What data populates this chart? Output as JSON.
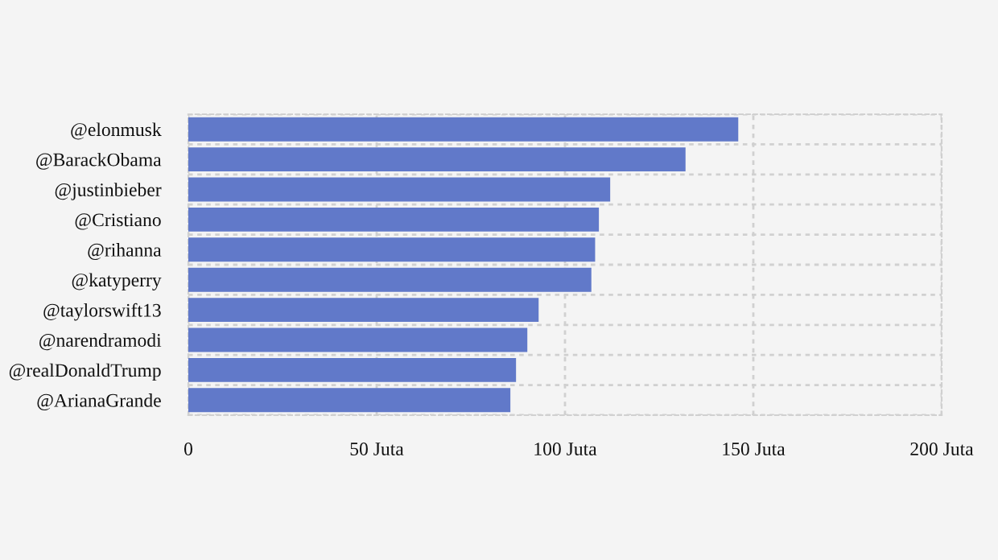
{
  "chart_data": {
    "type": "bar",
    "orientation": "horizontal",
    "categories": [
      "@elonmusk",
      "@BarackObama",
      "@justinbieber",
      "@Cristiano",
      "@rihanna",
      "@katyperry",
      "@taylorswift13",
      "@narendramodi",
      "@realDonaldTrump",
      "@ArianaGrande"
    ],
    "values": [
      146,
      132,
      112,
      109,
      108,
      107,
      93,
      90,
      87,
      85.5
    ],
    "color": "#6179c9",
    "xlim": [
      0,
      200
    ],
    "xticks": [
      0,
      {
        "value": 50,
        "label": "50 Juta"
      },
      {
        "value": 100,
        "label": "100 Juta"
      },
      {
        "value": 150,
        "label": "150 Juta"
      },
      {
        "value": 200,
        "label": "200 Juta"
      }
    ],
    "grid": true
  }
}
